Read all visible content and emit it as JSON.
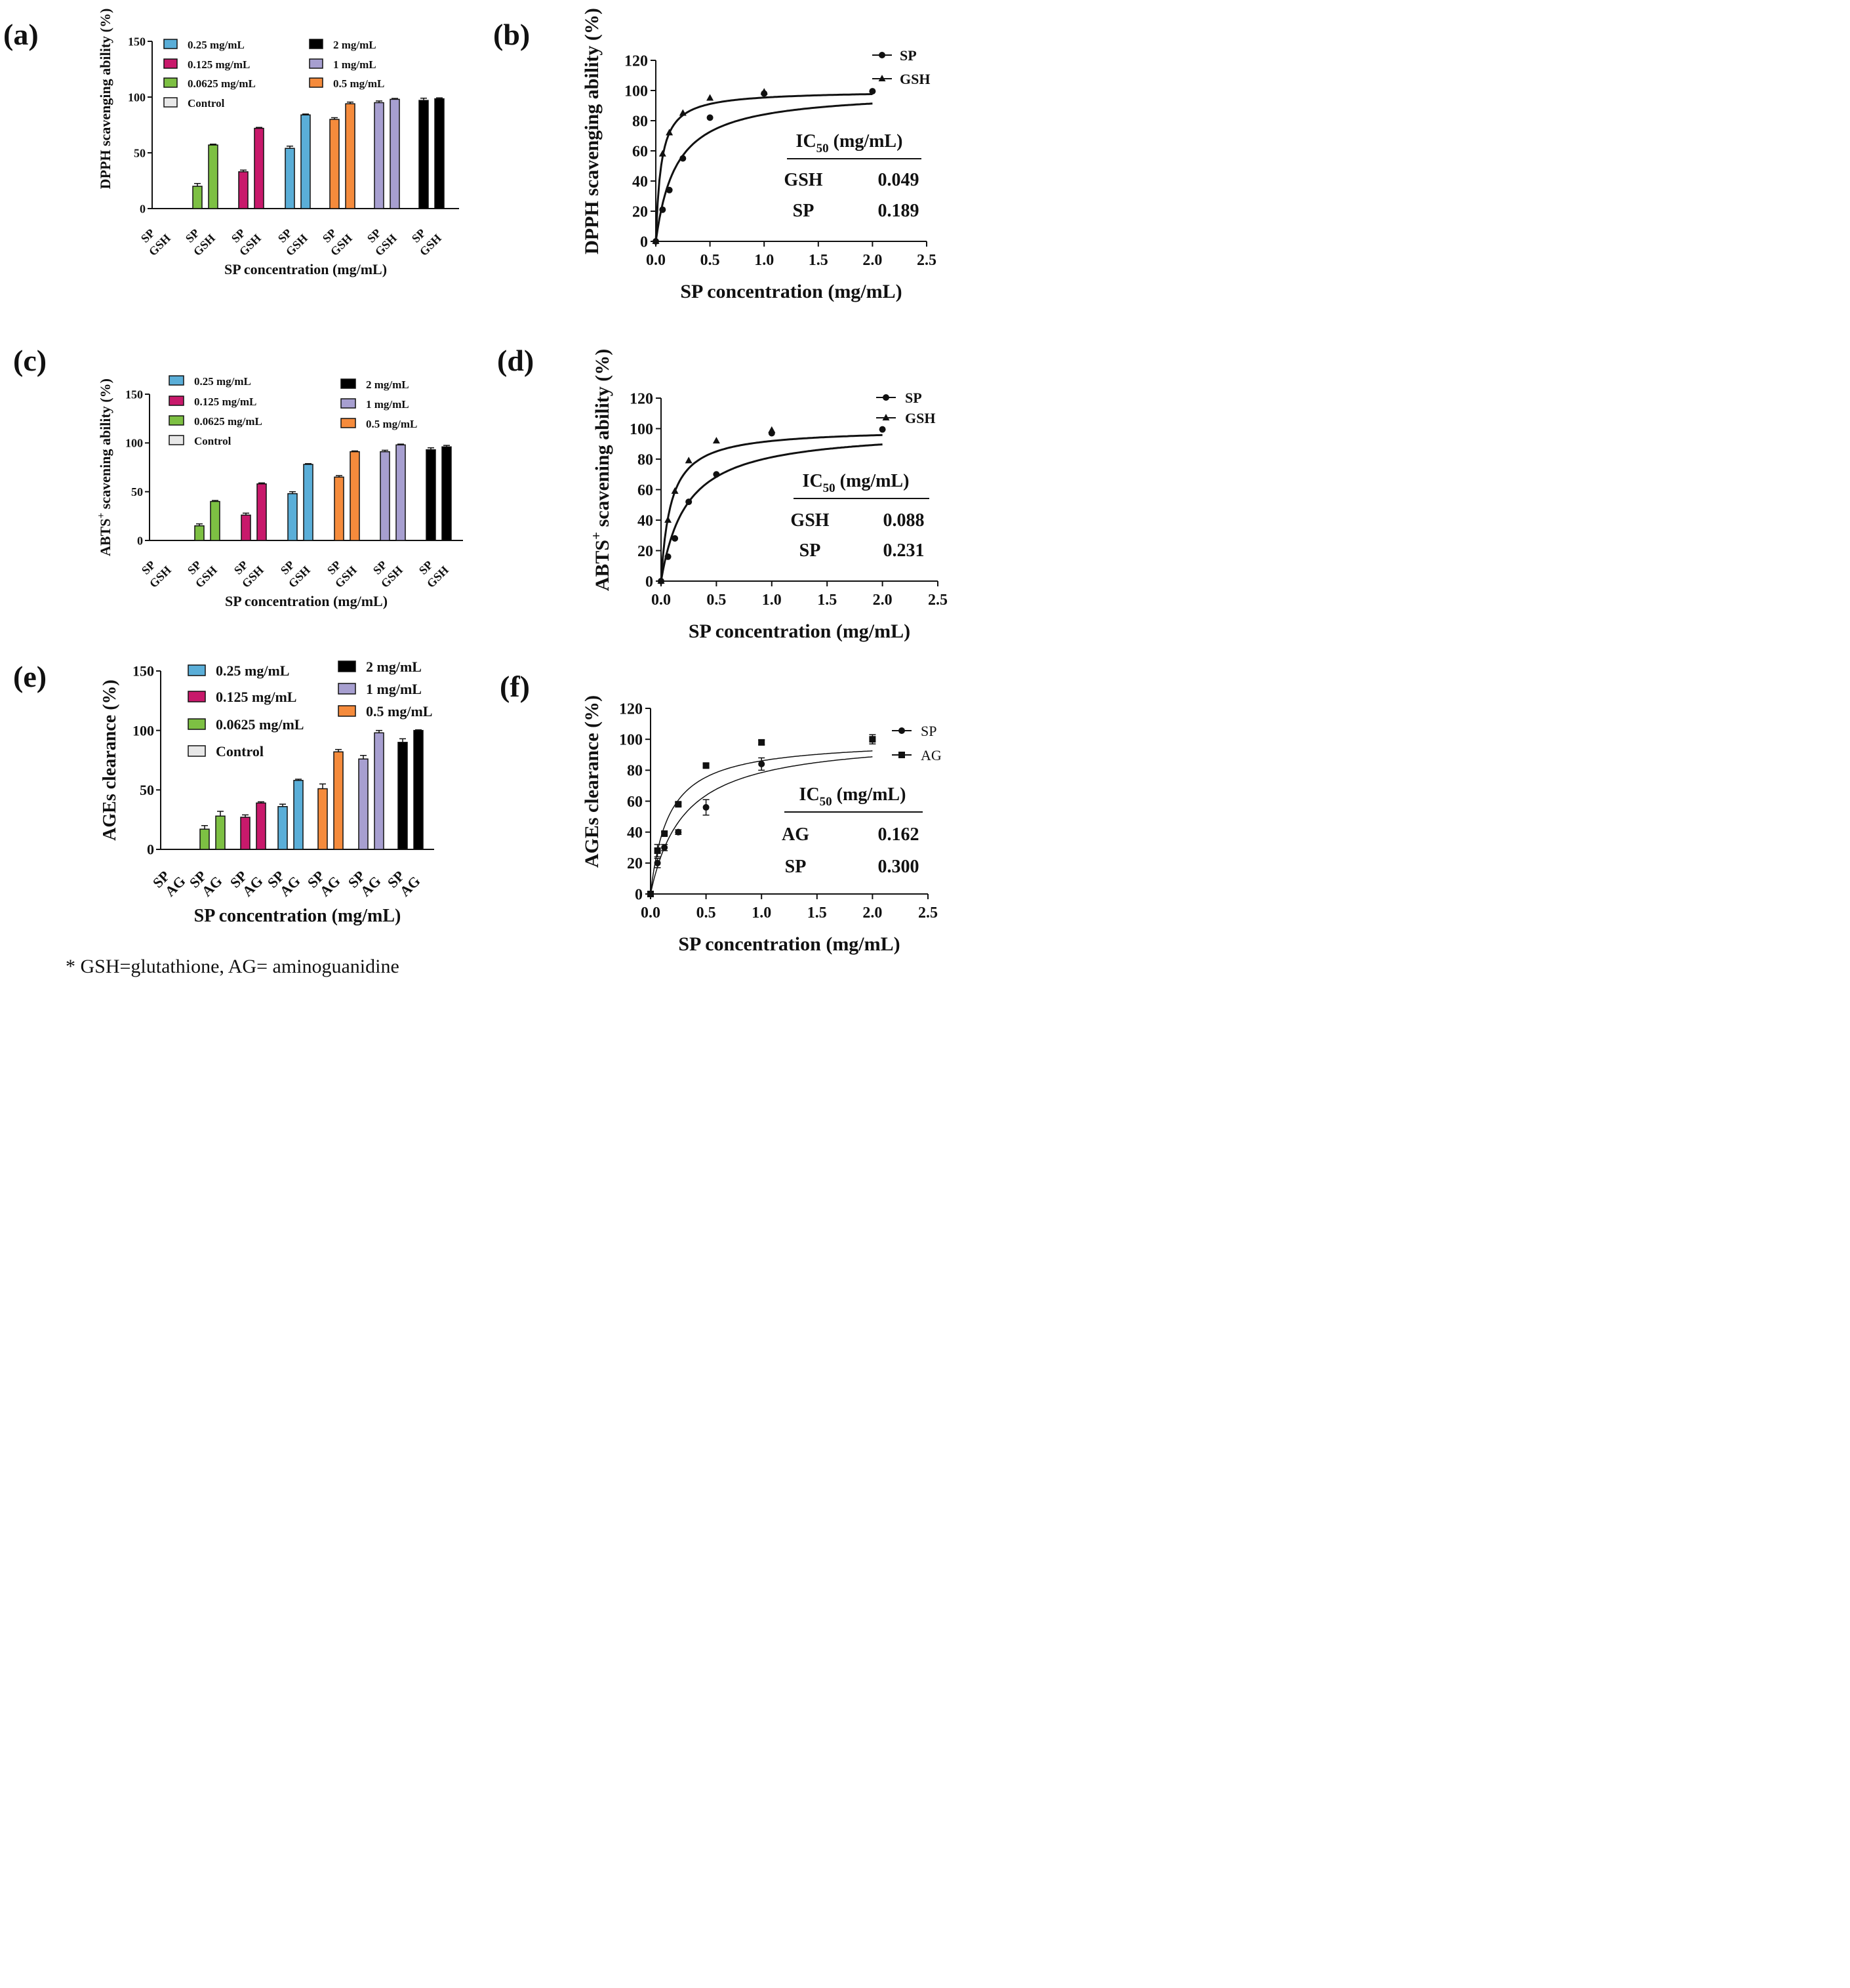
{
  "footnote": "* GSH=glutathione, AG= aminoguanidine",
  "colors": {
    "control": "#e8e8e8",
    "c0_0625": "#7dc043",
    "c0_125": "#c8196b",
    "c0_25": "#5aaed8",
    "c0_5": "#f58b3c",
    "c1": "#a79fd0",
    "c2": "#000000"
  },
  "chart_data": [
    {
      "panel": "(a)",
      "type": "bar",
      "title": "",
      "xlabel": "SP concentration (mg/mL)",
      "ylabel": "DPPH scavenging ability (%)",
      "ylim": [
        0,
        150
      ],
      "yticks": [
        0,
        50,
        100,
        150
      ],
      "groups": [
        "Control",
        "0.0625 mg/mL",
        "0.125 mg/mL",
        "0.25 mg/mL",
        "0.5 mg/mL",
        "1 mg/mL",
        "2 mg/mL"
      ],
      "bar_labels": [
        "SP",
        "GSH"
      ],
      "series": [
        {
          "name": "SP",
          "values": [
            0,
            20,
            33,
            54,
            80,
            95,
            97
          ],
          "errors": [
            0,
            2.5,
            1.5,
            2,
            1.5,
            1.5,
            2
          ]
        },
        {
          "name": "GSH",
          "values": [
            0,
            57,
            72,
            84,
            94,
            98,
            98.5
          ],
          "errors": [
            0,
            0.8,
            0.8,
            0.8,
            1.5,
            0.8,
            0.8
          ]
        }
      ],
      "legend_col1": [
        "0.25 mg/mL",
        "0.125 mg/mL",
        "0.0625 mg/mL",
        "Control"
      ],
      "legend_col2": [
        "2 mg/mL",
        "1 mg/mL",
        "0.5 mg/mL"
      ]
    },
    {
      "panel": "(b)",
      "type": "scatter",
      "xlabel": "SP concentration (mg/mL)",
      "ylabel": "DPPH scavenging ability (%)",
      "xlim": [
        0,
        2.5
      ],
      "ylim": [
        0,
        120
      ],
      "xticks": [
        "0.0",
        "0.5",
        "1.0",
        "1.5",
        "2.0",
        "2.5"
      ],
      "yticks": [
        0,
        20,
        40,
        60,
        80,
        100,
        120
      ],
      "series": [
        {
          "name": "SP",
          "marker": "circle",
          "ic50": 0.189,
          "x": [
            0,
            0.0625,
            0.125,
            0.25,
            0.5,
            1,
            2
          ],
          "y": [
            0,
            21,
            34,
            55,
            82,
            98,
            99.5
          ]
        },
        {
          "name": "GSH",
          "marker": "triangle",
          "ic50": 0.049,
          "x": [
            0,
            0.0625,
            0.125,
            0.25,
            0.5,
            1
          ],
          "y": [
            0,
            58,
            72,
            85,
            95,
            99
          ]
        }
      ],
      "ic50_header": "IC",
      "ic50_sub": "50",
      "ic50_unit": "(mg/mL)",
      "ic50_rows": [
        [
          "GSH",
          "0.049"
        ],
        [
          "SP",
          "0.189"
        ]
      ]
    },
    {
      "panel": "(c)",
      "type": "bar",
      "xlabel": "SP concentration (mg/mL)",
      "ylabel": "ABTS",
      "ylabel_sup": "+",
      "ylabel_rest": " scavening ability (%)",
      "ylim": [
        0,
        150
      ],
      "yticks": [
        0,
        50,
        100,
        150
      ],
      "groups": [
        "Control",
        "0.0625 mg/mL",
        "0.125 mg/mL",
        "0.25 mg/mL",
        "0.5 mg/mL",
        "1 mg/mL",
        "2 mg/mL"
      ],
      "bar_labels": [
        "SP",
        "GSH"
      ],
      "series": [
        {
          "name": "SP",
          "values": [
            0,
            15,
            26,
            48,
            65,
            91,
            93
          ],
          "errors": [
            0,
            2,
            2,
            2,
            1.5,
            1.5,
            2
          ]
        },
        {
          "name": "GSH",
          "values": [
            0,
            40,
            58,
            78,
            91,
            98,
            96
          ],
          "errors": [
            0,
            1,
            1,
            0.8,
            0.8,
            0.8,
            1.5
          ]
        }
      ],
      "legend_col1": [
        "0.25 mg/mL",
        "0.125 mg/mL",
        "0.0625 mg/mL",
        "Control"
      ],
      "legend_col2": [
        "2 mg/mL",
        "1 mg/mL",
        "0.5 mg/mL"
      ]
    },
    {
      "panel": "(d)",
      "type": "scatter",
      "xlabel": "SP concentration (mg/mL)",
      "ylabel": "ABTS",
      "ylabel_sup": "+",
      "ylabel_rest": " scavening ability (%)",
      "xlim": [
        0,
        2.5
      ],
      "ylim": [
        0,
        120
      ],
      "xticks": [
        "0.0",
        "0.5",
        "1.0",
        "1.5",
        "2.0",
        "2.5"
      ],
      "yticks": [
        0,
        20,
        40,
        60,
        80,
        100,
        120
      ],
      "series": [
        {
          "name": "SP",
          "marker": "circle",
          "ic50": 0.231,
          "x": [
            0,
            0.0625,
            0.125,
            0.25,
            0.5,
            1,
            2
          ],
          "y": [
            0,
            16,
            28,
            52,
            70,
            97,
            99.5
          ]
        },
        {
          "name": "GSH",
          "marker": "triangle",
          "ic50": 0.088,
          "x": [
            0,
            0.0625,
            0.125,
            0.25,
            0.5,
            1
          ],
          "y": [
            0,
            40,
            59,
            79,
            92,
            99
          ]
        }
      ],
      "ic50_header": "IC",
      "ic50_sub": "50",
      "ic50_unit": "(mg/mL)",
      "ic50_rows": [
        [
          "GSH",
          "0.088"
        ],
        [
          "SP",
          "0.231"
        ]
      ]
    },
    {
      "panel": "(e)",
      "type": "bar",
      "xlabel": "SP concentration (mg/mL)",
      "ylabel": "AGEs clearance (%)",
      "ylim": [
        0,
        150
      ],
      "yticks": [
        0,
        50,
        100,
        150
      ],
      "groups": [
        "Control",
        "0.0625 mg/mL",
        "0.125 mg/mL",
        "0.25 mg/mL",
        "0.5 mg/mL",
        "1 mg/mL",
        "2 mg/mL"
      ],
      "bar_labels": [
        "SP",
        "AG"
      ],
      "series": [
        {
          "name": "SP",
          "values": [
            0,
            17,
            27,
            36,
            51,
            76,
            90
          ],
          "errors": [
            0,
            3,
            2,
            2,
            4,
            3,
            3
          ]
        },
        {
          "name": "AG",
          "values": [
            0,
            28,
            39,
            58,
            82,
            98,
            100
          ],
          "errors": [
            0,
            4,
            1,
            1,
            2,
            2,
            0.5
          ]
        }
      ],
      "legend_col1": [
        "0.25 mg/mL",
        "0.125 mg/mL",
        "0.0625 mg/mL",
        "Control"
      ],
      "legend_col2": [
        "2 mg/mL",
        "1 mg/mL",
        "0.5 mg/mL"
      ]
    },
    {
      "panel": "(f)",
      "type": "scatter",
      "xlabel": "SP concentration (mg/mL)",
      "ylabel": "AGEs clearance (%)",
      "xlim": [
        0,
        2.5
      ],
      "ylim": [
        0,
        120
      ],
      "xticks": [
        "0.0",
        "0.5",
        "1.0",
        "1.5",
        "2.0",
        "2.5"
      ],
      "yticks": [
        0,
        20,
        40,
        60,
        80,
        100,
        120
      ],
      "series": [
        {
          "name": "SP",
          "marker": "circle",
          "ic50": 0.3,
          "x": [
            0,
            0.0625,
            0.125,
            0.25,
            0.5,
            1
          ],
          "y": [
            0,
            20,
            30,
            40,
            56,
            84
          ],
          "err": [
            0,
            3,
            2,
            1.5,
            5,
            4
          ]
        },
        {
          "name": "AG",
          "marker": "square",
          "ic50": 0.162,
          "x": [
            0,
            0.0625,
            0.125,
            0.25,
            0.5,
            1,
            2
          ],
          "y": [
            0,
            28,
            39,
            58,
            83,
            98,
            100
          ],
          "err": [
            0,
            4,
            1,
            1,
            1,
            1.5,
            3
          ]
        }
      ],
      "ic50_header": "IC",
      "ic50_sub": "50",
      "ic50_unit": "(mg/mL)",
      "ic50_rows": [
        [
          "AG",
          "0.162"
        ],
        [
          "SP",
          "0.300"
        ]
      ]
    }
  ]
}
